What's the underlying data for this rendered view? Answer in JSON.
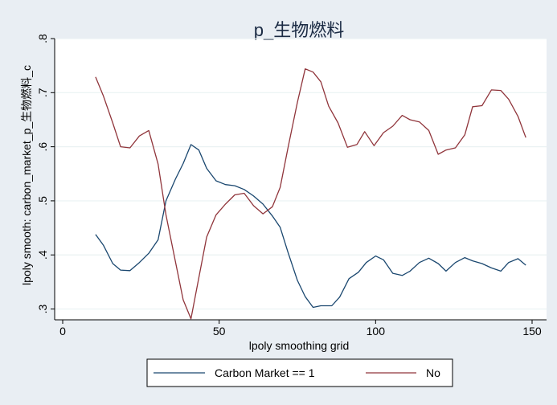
{
  "chart_data": {
    "type": "line",
    "title": "p_生物燃料",
    "xlabel": "lpoly smoothing grid",
    "ylabel": "lpoly smooth: carbon_market_p_生物燃料_c",
    "xlim": [
      0,
      150
    ],
    "ylim": [
      0.28,
      0.8
    ],
    "xticks": [
      0,
      50,
      100,
      150
    ],
    "xtick_labels": [
      "0",
      "50",
      "100",
      "150"
    ],
    "yticks": [
      0.3,
      0.4,
      0.5,
      0.6,
      0.7,
      0.8
    ],
    "ytick_labels": [
      ".3",
      ".4",
      ".5",
      ".6",
      ".7",
      ".8"
    ],
    "grid": "horizontal",
    "legend_position": "bottom",
    "series": [
      {
        "name": "Carbon Market == 1",
        "color": "#1a476f",
        "points": [
          [
            10.5,
            0.438
          ],
          [
            13,
            0.418
          ],
          [
            16,
            0.384
          ],
          [
            18.5,
            0.372
          ],
          [
            21.5,
            0.371
          ],
          [
            24.5,
            0.386
          ],
          [
            27.5,
            0.403
          ],
          [
            30.5,
            0.428
          ],
          [
            33,
            0.5
          ],
          [
            36,
            0.54
          ],
          [
            38.5,
            0.569
          ],
          [
            41,
            0.604
          ],
          [
            43.5,
            0.594
          ],
          [
            46,
            0.56
          ],
          [
            49,
            0.537
          ],
          [
            52,
            0.53
          ],
          [
            55,
            0.528
          ],
          [
            58,
            0.521
          ],
          [
            61,
            0.509
          ],
          [
            64,
            0.494
          ],
          [
            67,
            0.472
          ],
          [
            69.5,
            0.451
          ],
          [
            72,
            0.405
          ],
          [
            75,
            0.353
          ],
          [
            77.5,
            0.323
          ],
          [
            80,
            0.303
          ],
          [
            82.5,
            0.306
          ],
          [
            86,
            0.306
          ],
          [
            88.5,
            0.322
          ],
          [
            91.5,
            0.356
          ],
          [
            94.5,
            0.368
          ],
          [
            97,
            0.386
          ],
          [
            100,
            0.398
          ],
          [
            102.5,
            0.391
          ],
          [
            105.5,
            0.366
          ],
          [
            108.5,
            0.362
          ],
          [
            111,
            0.37
          ],
          [
            114,
            0.386
          ],
          [
            117,
            0.394
          ],
          [
            120,
            0.384
          ],
          [
            122.5,
            0.37
          ],
          [
            125.5,
            0.386
          ],
          [
            128.5,
            0.395
          ],
          [
            131,
            0.389
          ],
          [
            134,
            0.384
          ],
          [
            137,
            0.376
          ],
          [
            140,
            0.37
          ],
          [
            142.5,
            0.386
          ],
          [
            145.5,
            0.393
          ],
          [
            148,
            0.381
          ]
        ]
      },
      {
        "name": "No",
        "color": "#90353b",
        "points": [
          [
            10.5,
            0.729
          ],
          [
            13,
            0.694
          ],
          [
            16,
            0.644
          ],
          [
            18.5,
            0.6
          ],
          [
            21.5,
            0.598
          ],
          [
            24.5,
            0.62
          ],
          [
            27.5,
            0.63
          ],
          [
            30.5,
            0.568
          ],
          [
            33,
            0.474
          ],
          [
            36,
            0.388
          ],
          [
            38.5,
            0.317
          ],
          [
            41,
            0.282
          ],
          [
            43.5,
            0.358
          ],
          [
            46,
            0.433
          ],
          [
            49,
            0.474
          ],
          [
            52,
            0.494
          ],
          [
            55,
            0.511
          ],
          [
            58,
            0.514
          ],
          [
            61,
            0.491
          ],
          [
            64,
            0.476
          ],
          [
            67,
            0.489
          ],
          [
            69.5,
            0.525
          ],
          [
            72,
            0.598
          ],
          [
            75,
            0.682
          ],
          [
            77.5,
            0.744
          ],
          [
            80,
            0.738
          ],
          [
            82.5,
            0.72
          ],
          [
            85,
            0.675
          ],
          [
            88,
            0.644
          ],
          [
            91,
            0.599
          ],
          [
            94,
            0.604
          ],
          [
            96.5,
            0.628
          ],
          [
            99.5,
            0.602
          ],
          [
            102.5,
            0.626
          ],
          [
            105.5,
            0.638
          ],
          [
            108.5,
            0.658
          ],
          [
            111,
            0.65
          ],
          [
            114,
            0.646
          ],
          [
            117,
            0.63
          ],
          [
            120,
            0.586
          ],
          [
            122.5,
            0.594
          ],
          [
            125.5,
            0.598
          ],
          [
            128.5,
            0.622
          ],
          [
            131,
            0.674
          ],
          [
            134,
            0.676
          ],
          [
            137,
            0.705
          ],
          [
            140,
            0.704
          ],
          [
            142.5,
            0.688
          ],
          [
            145.5,
            0.656
          ],
          [
            148,
            0.617
          ]
        ]
      }
    ]
  }
}
